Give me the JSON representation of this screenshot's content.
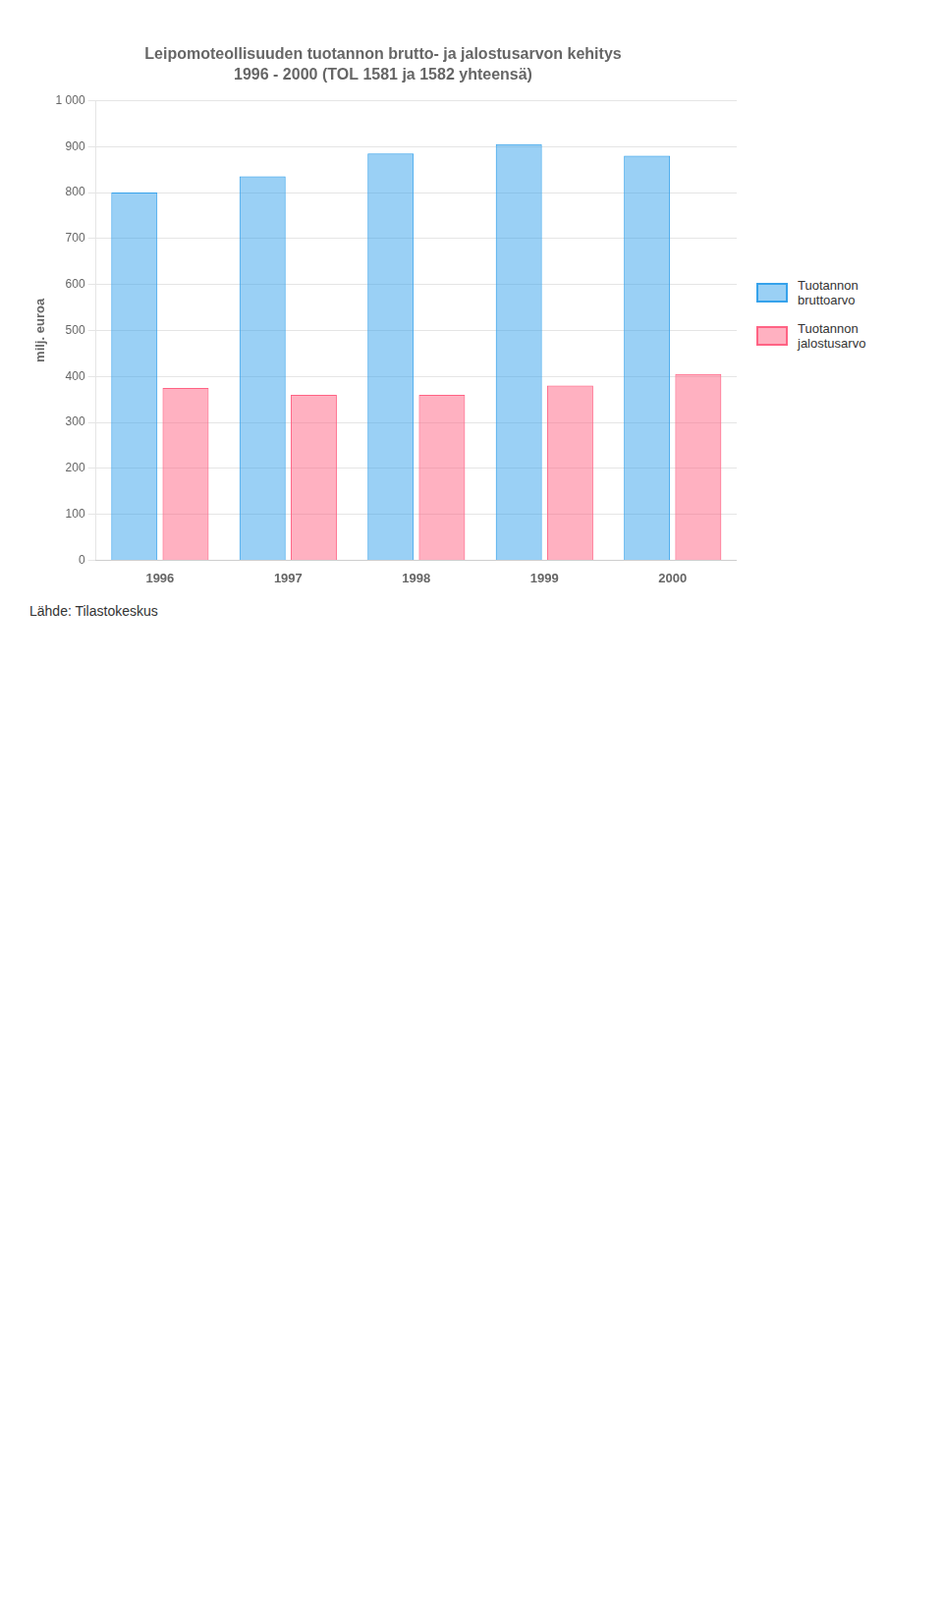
{
  "chart_data": {
    "type": "bar",
    "title": "Leipomoteollisuuden tuotannon brutto- ja jalostusarvon kehitys",
    "subtitle": "1996 - 2000 (TOL 1581 ja 1582 yhteensä)",
    "categories": [
      "1996",
      "1997",
      "1998",
      "1999",
      "2000"
    ],
    "series": [
      {
        "name": "Tuotannon\nbruttoarvo",
        "values": [
          800,
          835,
          885,
          905,
          880
        ]
      },
      {
        "name": "Tuotannon\njalostusarvo",
        "values": [
          375,
          360,
          360,
          380,
          405
        ]
      }
    ],
    "y_label": "milj. euroa",
    "ylim": [
      0,
      1000
    ],
    "yticks": [
      0,
      100,
      200,
      300,
      400,
      500,
      600,
      700,
      800,
      900,
      {
        "value": 1000,
        "label": "1 000"
      }
    ],
    "grid": true,
    "legend": "right",
    "annotations": [
      "Lähde: Tilastokeskus"
    ]
  }
}
